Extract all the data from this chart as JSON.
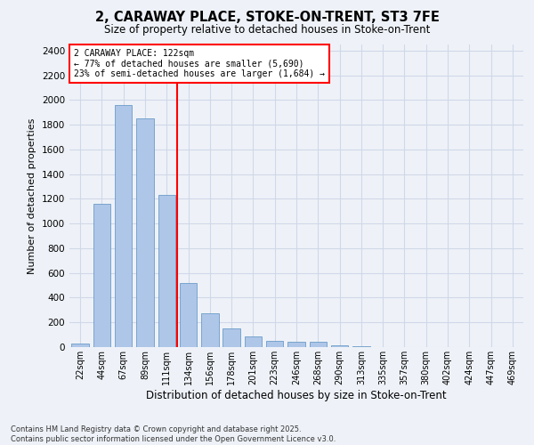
{
  "title": "2, CARAWAY PLACE, STOKE-ON-TRENT, ST3 7FE",
  "subtitle": "Size of property relative to detached houses in Stoke-on-Trent",
  "xlabel": "Distribution of detached houses by size in Stoke-on-Trent",
  "ylabel": "Number of detached properties",
  "categories": [
    "22sqm",
    "44sqm",
    "67sqm",
    "89sqm",
    "111sqm",
    "134sqm",
    "156sqm",
    "178sqm",
    "201sqm",
    "223sqm",
    "246sqm",
    "268sqm",
    "290sqm",
    "313sqm",
    "335sqm",
    "357sqm",
    "380sqm",
    "402sqm",
    "424sqm",
    "447sqm",
    "469sqm"
  ],
  "values": [
    30,
    1160,
    1960,
    1850,
    1230,
    520,
    275,
    150,
    85,
    50,
    45,
    40,
    15,
    5,
    3,
    2,
    2,
    1,
    1,
    1,
    1
  ],
  "bar_color": "#aec6e8",
  "bar_edge_color": "#5a8fc0",
  "vline_x_index": 4.5,
  "vline_color": "red",
  "annotation_title": "2 CARAWAY PLACE: 122sqm",
  "annotation_line1": "← 77% of detached houses are smaller (5,690)",
  "annotation_line2": "23% of semi-detached houses are larger (1,684) →",
  "annotation_box_color": "white",
  "annotation_box_edge_color": "red",
  "ylim": [
    0,
    2450
  ],
  "yticks": [
    0,
    200,
    400,
    600,
    800,
    1000,
    1200,
    1400,
    1600,
    1800,
    2000,
    2200,
    2400
  ],
  "grid_color": "#d0d8e8",
  "background_color": "#eef2f8",
  "footer_line1": "Contains HM Land Registry data © Crown copyright and database right 2025.",
  "footer_line2": "Contains public sector information licensed under the Open Government Licence v3.0."
}
